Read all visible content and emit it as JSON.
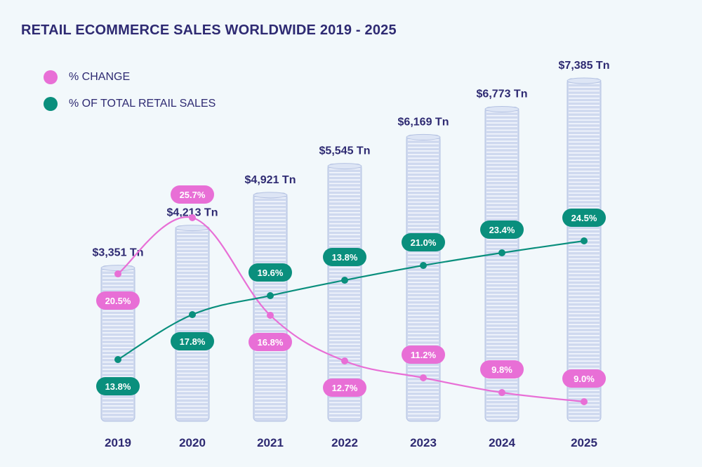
{
  "chart_data": {
    "type": "bar",
    "title": "RETAIL ECOMMERCE SALES WORLDWIDE 2019 - 2025",
    "categories": [
      "2019",
      "2020",
      "2021",
      "2022",
      "2023",
      "2024",
      "2025"
    ],
    "values": [
      3.351,
      4.213,
      4.921,
      5.545,
      6.169,
      6.773,
      7.385
    ],
    "value_labels": [
      "$3,351 Tn",
      "$4,213 Tn",
      "$4,921 Tn",
      "$5,545 Tn",
      "$6,169 Tn",
      "$6,773 Tn",
      "$7,385 Tn"
    ],
    "ylim": [
      0,
      7.385
    ],
    "line_series": [
      {
        "name": "% CHANGE",
        "color": "#e86fd6",
        "values": [
          20.5,
          25.7,
          16.8,
          12.7,
          11.2,
          9.8,
          9.0
        ],
        "labels": [
          "20.5%",
          "25.7%",
          "16.8%",
          "12.7%",
          "11.2%",
          "9.8%",
          "9.0%"
        ],
        "label_position": [
          "below",
          "above",
          "below",
          "below",
          "above",
          "above",
          "above"
        ]
      },
      {
        "name": "% OF TOTAL RETAIL SALES",
        "color": "#0a8f7d",
        "values": [
          13.8,
          17.8,
          19.6,
          13.8,
          21.0,
          23.4,
          24.5
        ],
        "labels": [
          "13.8%",
          "17.8%",
          "19.6%",
          "13.8%",
          "21.0%",
          "23.4%",
          "24.5%"
        ],
        "label_position": [
          "below",
          "below",
          "above",
          "above",
          "above",
          "above",
          "above"
        ]
      }
    ]
  },
  "legend": [
    {
      "label": "% CHANGE",
      "color": "#e86fd6"
    },
    {
      "label": "% OF TOTAL RETAIL SALES",
      "color": "#0a8f7d"
    }
  ],
  "colors": {
    "title": "#2e2a72",
    "coin_face": "#cfd9ef",
    "coin_edge": "#b4c2e2",
    "coin_stripe": "#f4f7fd",
    "background": "#f2f8fb"
  }
}
